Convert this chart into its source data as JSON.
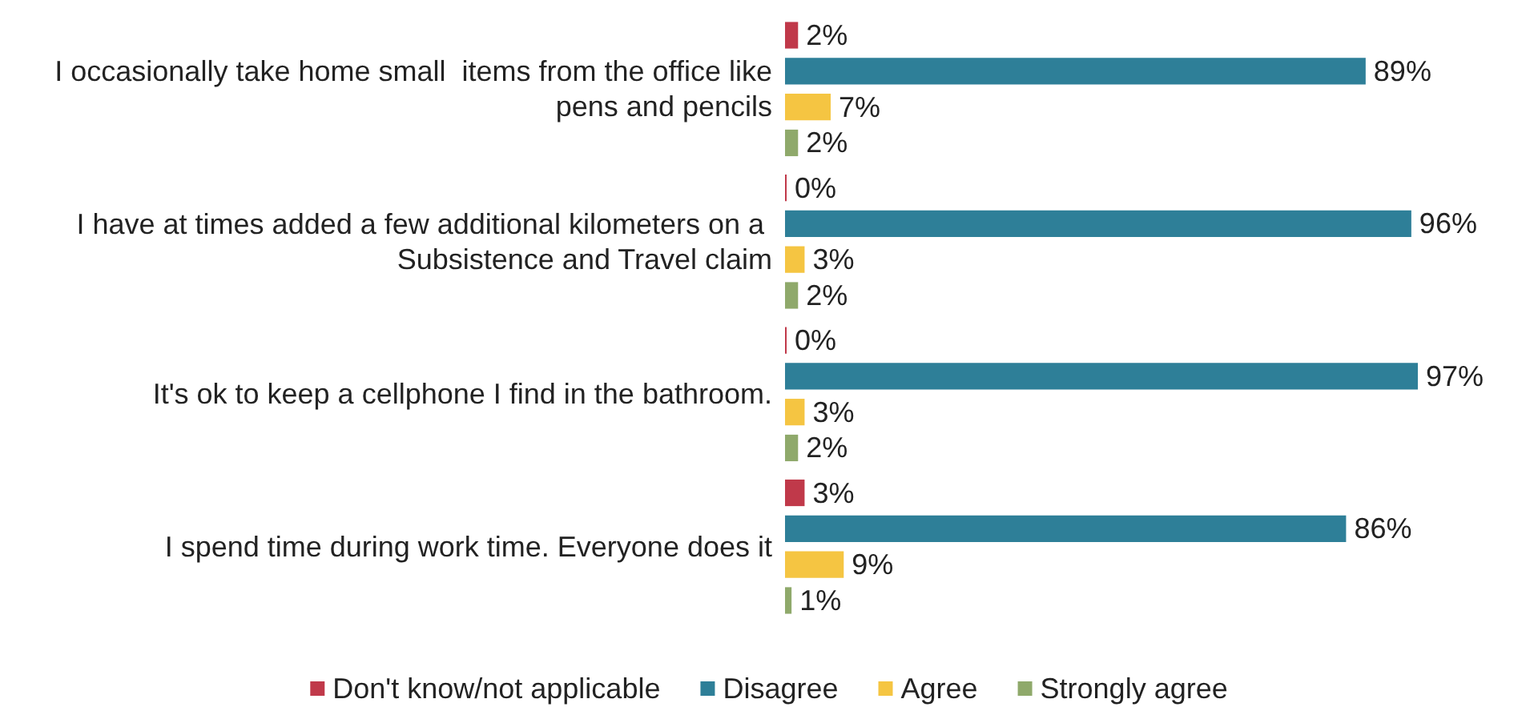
{
  "chart_data": {
    "type": "bar",
    "orientation": "horizontal",
    "legend": "bottom",
    "categories": [
      "I occasionally take home small  items from the office like pens and pencils",
      "I have at times added a few additional kilometers on a Subsistence and Travel claim",
      "It's ok to keep a cellphone I find in the bathroom.",
      "I spend time during work time. Everyone does it"
    ],
    "series": [
      {
        "name": "Don't know/not applicable",
        "color": "#c0394a",
        "values": [
          2,
          0,
          0,
          3
        ],
        "value_labels": [
          "2%",
          "0%",
          "0%",
          "3%"
        ]
      },
      {
        "name": "Disagree",
        "color": "#2e7f98",
        "values": [
          89,
          96,
          97,
          86
        ],
        "value_labels": [
          "89%",
          "96%",
          "97%",
          "86%"
        ]
      },
      {
        "name": "Agree",
        "color": "#f5c542",
        "values": [
          7,
          3,
          3,
          9
        ],
        "value_labels": [
          "7%",
          "3%",
          "3%",
          "9%"
        ]
      },
      {
        "name": "Strongly agree",
        "color": "#8fa96b",
        "values": [
          2,
          2,
          2,
          1
        ],
        "value_labels": [
          "2%",
          "2%",
          "2%",
          "1%"
        ]
      }
    ]
  }
}
